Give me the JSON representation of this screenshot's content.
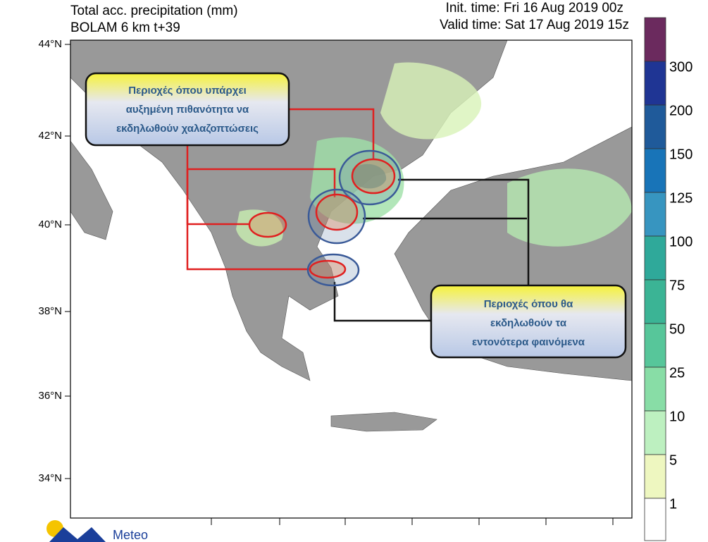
{
  "header": {
    "title": "Total acc. precipitation (mm)",
    "model": "BOLAM 6 km t+39",
    "init_time": "Init. time: Fri 16 Aug 2019 00z",
    "valid_time": "Valid time: Sat 17 Aug 2019 15z"
  },
  "map": {
    "lat_labels": [
      "44°N",
      "42°N",
      "40°N",
      "38°N",
      "36°N",
      "34°N"
    ]
  },
  "legend": {
    "labels": [
      "300",
      "200",
      "150",
      "125",
      "100",
      "75",
      "50",
      "25",
      "10",
      "5",
      "1"
    ],
    "colors": [
      "#6b2a5e",
      "#1f3594",
      "#1f5a9a",
      "#1874b8",
      "#3795c0",
      "#2fa99a",
      "#3bb495",
      "#57c69a",
      "#88dda6",
      "#bdf0c0",
      "#eef7c0",
      "#ffffff"
    ]
  },
  "callouts": [
    {
      "lines": [
        "Περιοχές όπου υπάρχει",
        "αυξημένη πιθανότητα να",
        "εκδηλωθούν χαλαζοπτώσεις"
      ]
    },
    {
      "lines": [
        "Περιοχές όπου θα",
        "εκδηλωθούν τα",
        "εντονότερα φαινόμενα"
      ]
    }
  ],
  "logo": {
    "text": "Meteo"
  }
}
